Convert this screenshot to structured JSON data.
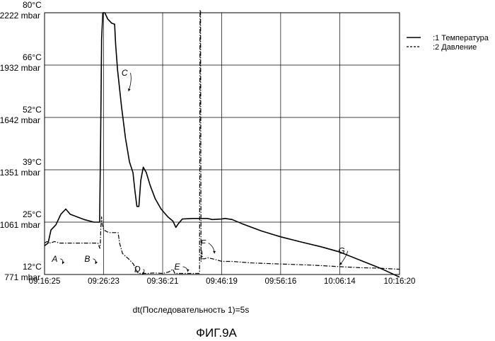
{
  "chart_data": {
    "type": "line",
    "x_axis": {
      "tick_labels": [
        "09:16:25",
        "09:26:23",
        "09:36:21",
        "09:46:19",
        "09:56:16",
        "10:06:14",
        "10:16:20"
      ],
      "tick_seconds": [
        0,
        598,
        1196,
        1794,
        2391,
        2989,
        3595
      ],
      "range": [
        0,
        3595
      ],
      "label": "dt(Последовательность 1)=5s"
    },
    "y_axis": {
      "temp_ticks": [
        "12°C",
        "25°C",
        "39°C",
        "52°C",
        "66°C",
        "80°C"
      ],
      "pressure_ticks": [
        "771 mbar",
        "1061 mbar",
        "1351 mbar",
        "1642 mbar",
        "1932 mbar",
        "2222 mbar"
      ],
      "range": [
        0,
        5
      ],
      "grid": true
    },
    "legend": {
      "placement": "top-right",
      "entries": [
        ":1  Температура",
        ":2  Давление"
      ]
    },
    "series": [
      {
        "name": "Температура",
        "style": "solid",
        "points": [
          [
            0,
            0.55
          ],
          [
            36,
            0.6
          ],
          [
            65,
            0.85
          ],
          [
            115,
            0.95
          ],
          [
            165,
            1.15
          ],
          [
            215,
            1.25
          ],
          [
            260,
            1.15
          ],
          [
            400,
            1.05
          ],
          [
            500,
            1.0
          ],
          [
            545,
            1.0
          ],
          [
            558,
            1.0
          ],
          [
            568,
            2.6
          ],
          [
            578,
            4.5
          ],
          [
            590,
            5.0
          ],
          [
            610,
            5.0
          ],
          [
            640,
            4.88
          ],
          [
            680,
            4.8
          ],
          [
            710,
            4.78
          ],
          [
            720,
            4.4
          ],
          [
            740,
            3.9
          ],
          [
            780,
            3.2
          ],
          [
            820,
            2.6
          ],
          [
            860,
            2.15
          ],
          [
            895,
            1.95
          ],
          [
            915,
            1.6
          ],
          [
            935,
            1.3
          ],
          [
            955,
            1.3
          ],
          [
            975,
            1.8
          ],
          [
            1000,
            2.05
          ],
          [
            1030,
            1.95
          ],
          [
            1070,
            1.7
          ],
          [
            1120,
            1.45
          ],
          [
            1180,
            1.25
          ],
          [
            1250,
            1.1
          ],
          [
            1300,
            1.02
          ],
          [
            1330,
            0.9
          ],
          [
            1355,
            0.97
          ],
          [
            1395,
            1.06
          ],
          [
            1500,
            1.07
          ],
          [
            1620,
            1.07
          ],
          [
            1650,
            1.07
          ],
          [
            1700,
            1.05
          ],
          [
            1790,
            1.06
          ],
          [
            1830,
            1.07
          ],
          [
            1900,
            1.05
          ],
          [
            2000,
            0.97
          ],
          [
            2200,
            0.83
          ],
          [
            2390,
            0.72
          ],
          [
            2600,
            0.62
          ],
          [
            2800,
            0.53
          ],
          [
            2990,
            0.43
          ],
          [
            3200,
            0.27
          ],
          [
            3400,
            0.12
          ],
          [
            3595,
            -0.05
          ]
        ]
      },
      {
        "name": "Давление",
        "style": "dash-dot",
        "points": [
          [
            0,
            0.6
          ],
          [
            25,
            0.63
          ],
          [
            60,
            0.6
          ],
          [
            100,
            0.63
          ],
          [
            150,
            0.6
          ],
          [
            250,
            0.6
          ],
          [
            400,
            0.6
          ],
          [
            540,
            0.6
          ],
          [
            560,
            0.5
          ],
          [
            565,
            0.6
          ],
          [
            570,
            0.9
          ],
          [
            577,
            1.1
          ],
          [
            585,
            0.95
          ],
          [
            600,
            0.85
          ],
          [
            650,
            0.8
          ],
          [
            700,
            0.8
          ],
          [
            745,
            0.8
          ],
          [
            760,
            0.6
          ],
          [
            790,
            0.4
          ],
          [
            850,
            0.3
          ],
          [
            900,
            0.2
          ],
          [
            930,
            0.08
          ],
          [
            950,
            0.02
          ],
          [
            1000,
            0.02
          ],
          [
            1050,
            0.02
          ],
          [
            1100,
            0.03
          ],
          [
            1200,
            0.02
          ],
          [
            1260,
            0.05
          ],
          [
            1300,
            0.1
          ],
          [
            1320,
            0.02
          ],
          [
            1400,
            0.02
          ],
          [
            1450,
            0.02
          ],
          [
            1565,
            0.02
          ],
          [
            1570,
            0.05
          ],
          [
            1575,
            5.05
          ],
          [
            1580,
            5.05
          ],
          [
            1585,
            0.25
          ],
          [
            1592,
            0.45
          ],
          [
            1600,
            0.3
          ],
          [
            1620,
            0.3
          ],
          [
            1650,
            0.32
          ],
          [
            1700,
            0.3
          ],
          [
            1800,
            0.25
          ],
          [
            1900,
            0.25
          ],
          [
            2100,
            0.22
          ],
          [
            2400,
            0.2
          ],
          [
            2700,
            0.18
          ],
          [
            2989,
            0.15
          ],
          [
            3200,
            0.13
          ],
          [
            3400,
            0.12
          ],
          [
            3595,
            0.1
          ]
        ]
      }
    ],
    "annotations": [
      {
        "label": "A",
        "x": 160,
        "y": 0.3,
        "tx": 180,
        "ty": 0.2
      },
      {
        "label": "B",
        "x": 490,
        "y": 0.3,
        "tx": 515,
        "ty": 0.2
      },
      {
        "label": "C",
        "x": 870,
        "y": 3.85,
        "tx": 850,
        "ty": 3.5
      },
      {
        "label": "D",
        "x": 1000,
        "y": 0.1,
        "tx": 990,
        "ty": 0.0
      },
      {
        "label": "E",
        "x": 1400,
        "y": 0.15,
        "tx": 1450,
        "ty": 0.05
      },
      {
        "label": "F",
        "x": 1660,
        "y": 0.6,
        "tx": 1720,
        "ty": 0.4
      },
      {
        "label": "G",
        "x": 3070,
        "y": 0.45,
        "tx": 2989,
        "ty": 0.18
      }
    ]
  },
  "caption": "ФИГ.9А"
}
